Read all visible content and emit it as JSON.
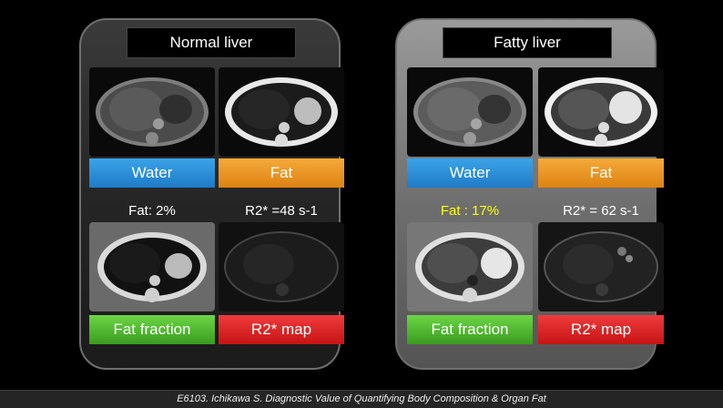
{
  "panels": {
    "left": {
      "title": "Normal liver",
      "water_label": "Water",
      "fat_label": "Fat",
      "fat_value": "Fat: 2%",
      "r2_value": "R2* =48 s-1",
      "ff_label": "Fat fraction",
      "r2_label": "R2* map"
    },
    "right": {
      "title": "Fatty liver",
      "water_label": "Water",
      "fat_label": "Fat",
      "fat_value": "Fat : 17%",
      "r2_value": "R2* = 62 s-1",
      "ff_label": "Fat fraction",
      "r2_label": "R2* map"
    }
  },
  "colors": {
    "water": "#2d8fd8",
    "fat": "#ee961f",
    "fat_fraction": "#55bb30",
    "r2_map": "#e02626",
    "highlight_text": "#ffff00"
  },
  "footer": "E6103. Ichikawa S. Diagnostic Value of Quantifying  Body Composition & Organ Fat"
}
